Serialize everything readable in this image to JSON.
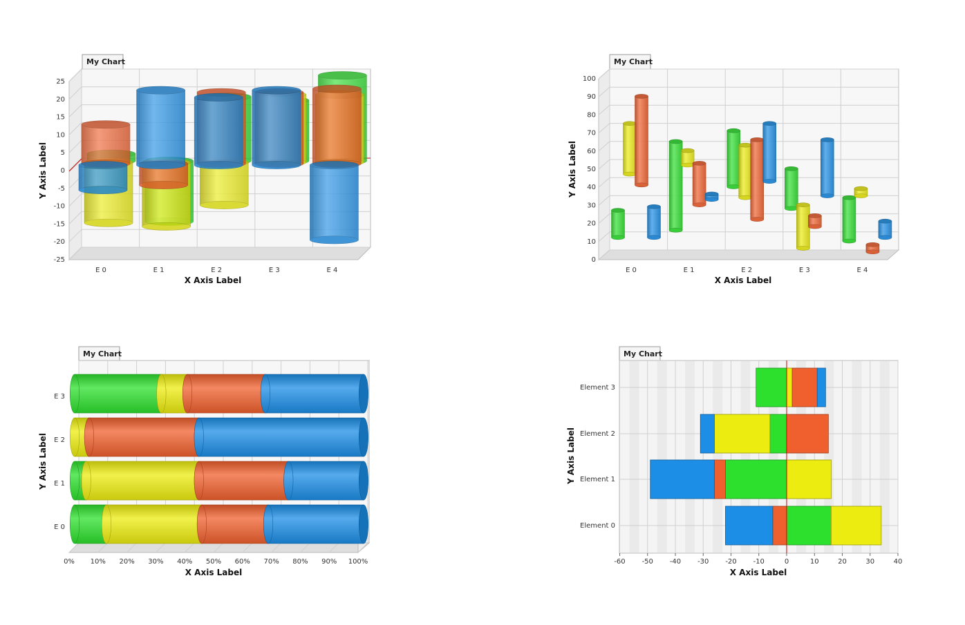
{
  "colors": {
    "green": "#2ee02e",
    "yellow": "#ecec10",
    "orange": "#f0602e",
    "blue": "#1c8ee6",
    "gridline": "#cfcfcf",
    "zero_line": "#cc0000"
  },
  "chart_data": [
    {
      "id": "c1",
      "type": "bar",
      "variant": "3d-cylinder-overlapped",
      "tab_title": "My Chart",
      "xlabel": "X Axis Label",
      "ylabel": "Y Axis Label",
      "categories": [
        "E 0",
        "E 1",
        "E 2",
        "E 3",
        "E 4"
      ],
      "ylim": [
        -25,
        25
      ],
      "yticks": [
        "25",
        "20",
        "15",
        "10",
        "5",
        "0",
        "-5",
        "-10",
        "-15",
        "-20",
        "-25"
      ],
      "series": [
        {
          "name": "green",
          "color": "green",
          "values": [
            2,
            -17,
            18,
            17,
            24
          ]
        },
        {
          "name": "yellow",
          "color": "yellow",
          "values": [
            -17,
            -18,
            -12,
            19,
            19
          ]
        },
        {
          "name": "orange",
          "color": "orange",
          "values": [
            11,
            -6,
            20,
            20,
            21
          ]
        },
        {
          "name": "blue",
          "color": "blue",
          "values": [
            -7,
            21,
            19,
            21,
            -21
          ]
        }
      ]
    },
    {
      "id": "c2",
      "type": "bar",
      "variant": "3d-cylinder-floating",
      "tab_title": "My Chart",
      "xlabel": "X Axis Label",
      "ylabel": "Y Axis Label",
      "categories": [
        "E 0",
        "E 1",
        "E 2",
        "E 3",
        "E 4"
      ],
      "ylim": [
        0,
        100
      ],
      "yticks": [
        "100",
        "90",
        "80",
        "70",
        "60",
        "50",
        "40",
        "30",
        "20",
        "10",
        "0"
      ],
      "series": [
        {
          "name": "green",
          "color": "green",
          "ranges": [
            [
              10,
              25
            ],
            [
              14,
              63
            ],
            [
              38,
              69
            ],
            [
              26,
              48
            ],
            [
              8,
              32
            ]
          ]
        },
        {
          "name": "yellow",
          "color": "yellow",
          "ranges": [
            [
              45,
              73
            ],
            [
              50,
              58
            ],
            [
              32,
              61
            ],
            [
              4,
              28
            ],
            [
              33,
              37
            ]
          ]
        },
        {
          "name": "orange",
          "color": "orange",
          "ranges": [
            [
              39,
              88
            ],
            [
              28,
              51
            ],
            [
              20,
              64
            ],
            [
              16,
              22
            ],
            [
              2,
              6
            ]
          ]
        },
        {
          "name": "blue",
          "color": "blue",
          "ranges": [
            [
              10,
              27
            ],
            [
              31,
              34
            ],
            [
              41,
              73
            ],
            [
              33,
              64
            ],
            [
              10,
              19
            ]
          ]
        }
      ]
    },
    {
      "id": "c3",
      "type": "bar",
      "variant": "3d-cylinder-horizontal-stacked-percent",
      "tab_title": "My Chart",
      "xlabel": "X Axis Label",
      "ylabel": "Y Axis Label",
      "categories": [
        "E 0",
        "E 1",
        "E 2",
        "E 3"
      ],
      "xlim": [
        0,
        100
      ],
      "xticks": [
        "0%",
        "10%",
        "20%",
        "30%",
        "40%",
        "50%",
        "60%",
        "70%",
        "80%",
        "90%",
        "100%"
      ],
      "series": [
        {
          "name": "green",
          "color": "green",
          "values": [
            11,
            4,
            0,
            30
          ]
        },
        {
          "name": "yellow",
          "color": "yellow",
          "values": [
            33,
            39,
            5,
            9
          ]
        },
        {
          "name": "orange",
          "color": "orange",
          "values": [
            23,
            31,
            38,
            27
          ]
        },
        {
          "name": "blue",
          "color": "blue",
          "values": [
            33,
            26,
            57,
            34
          ]
        }
      ]
    },
    {
      "id": "c4",
      "type": "bar",
      "variant": "horizontal-stacked-diverging",
      "tab_title": "My Chart",
      "xlabel": "X Axis Label",
      "ylabel": "Y Axis Label",
      "categories": [
        "Element 0",
        "Element 1",
        "Element 2",
        "Element 3"
      ],
      "xlim": [
        -60,
        40
      ],
      "xticks": [
        "-60",
        "-50",
        "-40",
        "-30",
        "-20",
        "-10",
        "0",
        "10",
        "20",
        "30",
        "40"
      ],
      "series": [
        {
          "name": "green",
          "color": "green",
          "values": [
            16,
            -22,
            -6,
            -11
          ]
        },
        {
          "name": "yellow",
          "color": "yellow",
          "values": [
            18,
            16,
            -20,
            2
          ]
        },
        {
          "name": "orange",
          "color": "orange",
          "values": [
            -5,
            -4,
            15,
            9
          ]
        },
        {
          "name": "blue",
          "color": "blue",
          "values": [
            -17,
            -23,
            -5,
            3
          ]
        }
      ]
    }
  ]
}
